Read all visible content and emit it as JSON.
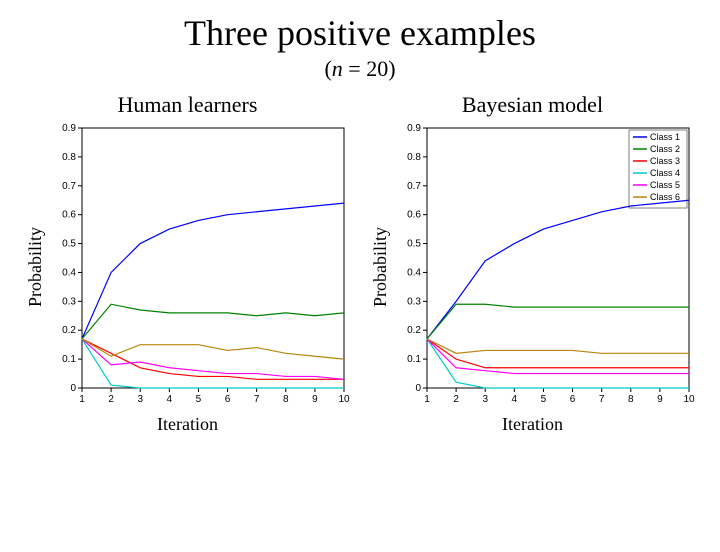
{
  "title": "Three positive examples",
  "subtitle_n_label": "n",
  "subtitle_rest": " = 20)",
  "subtitle_open": "(",
  "panels": {
    "left": {
      "title": "Human learners",
      "ylabel": "Probability",
      "xlabel": "Iteration",
      "chart": {
        "type": "line",
        "xlim": [
          1,
          10
        ],
        "ylim": [
          0,
          0.9
        ],
        "xticks": [
          1,
          2,
          3,
          4,
          5,
          6,
          7,
          8,
          9,
          10
        ],
        "yticks": [
          0,
          0.1,
          0.2,
          0.3,
          0.4,
          0.5,
          0.6,
          0.7,
          0.8,
          0.9
        ],
        "bg": "#ffffff",
        "box_color": "#000000",
        "line_width": 1.2,
        "series": [
          {
            "name": "Class 1",
            "color": "#0000ff",
            "y": [
              0.17,
              0.4,
              0.5,
              0.55,
              0.58,
              0.6,
              0.61,
              0.62,
              0.63,
              0.64
            ]
          },
          {
            "name": "Class 2",
            "color": "#008000",
            "y": [
              0.17,
              0.29,
              0.27,
              0.26,
              0.26,
              0.26,
              0.25,
              0.26,
              0.25,
              0.26
            ]
          },
          {
            "name": "Class 3",
            "color": "#ff0000",
            "y": [
              0.17,
              0.12,
              0.07,
              0.05,
              0.04,
              0.04,
              0.03,
              0.03,
              0.03,
              0.03
            ]
          },
          {
            "name": "Class 4",
            "color": "#00cccc",
            "y": [
              0.17,
              0.01,
              0.0,
              0.0,
              0.0,
              0.0,
              0.0,
              0.0,
              0.0,
              0.0
            ]
          },
          {
            "name": "Class 5",
            "color": "#ff00ff",
            "y": [
              0.17,
              0.08,
              0.09,
              0.07,
              0.06,
              0.05,
              0.05,
              0.04,
              0.04,
              0.03
            ]
          },
          {
            "name": "Class 6",
            "color": "#b8860b",
            "y": [
              0.17,
              0.11,
              0.15,
              0.15,
              0.15,
              0.13,
              0.14,
              0.12,
              0.11,
              0.1
            ]
          }
        ]
      }
    },
    "right": {
      "title": "Bayesian model",
      "ylabel": "Probability",
      "xlabel": "Iteration",
      "chart": {
        "type": "line",
        "xlim": [
          1,
          10
        ],
        "ylim": [
          0,
          0.9
        ],
        "xticks": [
          1,
          2,
          3,
          4,
          5,
          6,
          7,
          8,
          9,
          10
        ],
        "yticks": [
          0,
          0.1,
          0.2,
          0.3,
          0.4,
          0.5,
          0.6,
          0.7,
          0.8,
          0.9
        ],
        "bg": "#ffffff",
        "box_color": "#000000",
        "line_width": 1.2,
        "legend": {
          "labels": [
            "Class 1",
            "Class 2",
            "Class 3",
            "Class 4",
            "Class 5",
            "Class 6"
          ],
          "colors": [
            "#0000ff",
            "#008000",
            "#ff0000",
            "#00cccc",
            "#ff00ff",
            "#b8860b"
          ],
          "position": "top-right"
        },
        "series": [
          {
            "name": "Class 1",
            "color": "#0000ff",
            "y": [
              0.17,
              0.3,
              0.44,
              0.5,
              0.55,
              0.58,
              0.61,
              0.63,
              0.64,
              0.65
            ]
          },
          {
            "name": "Class 2",
            "color": "#008000",
            "y": [
              0.17,
              0.29,
              0.29,
              0.28,
              0.28,
              0.28,
              0.28,
              0.28,
              0.28,
              0.28
            ]
          },
          {
            "name": "Class 3",
            "color": "#ff0000",
            "y": [
              0.17,
              0.1,
              0.07,
              0.07,
              0.07,
              0.07,
              0.07,
              0.07,
              0.07,
              0.07
            ]
          },
          {
            "name": "Class 4",
            "color": "#00cccc",
            "y": [
              0.17,
              0.02,
              0.0,
              0.0,
              0.0,
              0.0,
              0.0,
              0.0,
              0.0,
              0.0
            ]
          },
          {
            "name": "Class 5",
            "color": "#ff00ff",
            "y": [
              0.17,
              0.07,
              0.06,
              0.05,
              0.05,
              0.05,
              0.05,
              0.05,
              0.05,
              0.05
            ]
          },
          {
            "name": "Class 6",
            "color": "#b8860b",
            "y": [
              0.17,
              0.12,
              0.13,
              0.13,
              0.13,
              0.13,
              0.12,
              0.12,
              0.12,
              0.12
            ]
          }
        ]
      }
    }
  }
}
